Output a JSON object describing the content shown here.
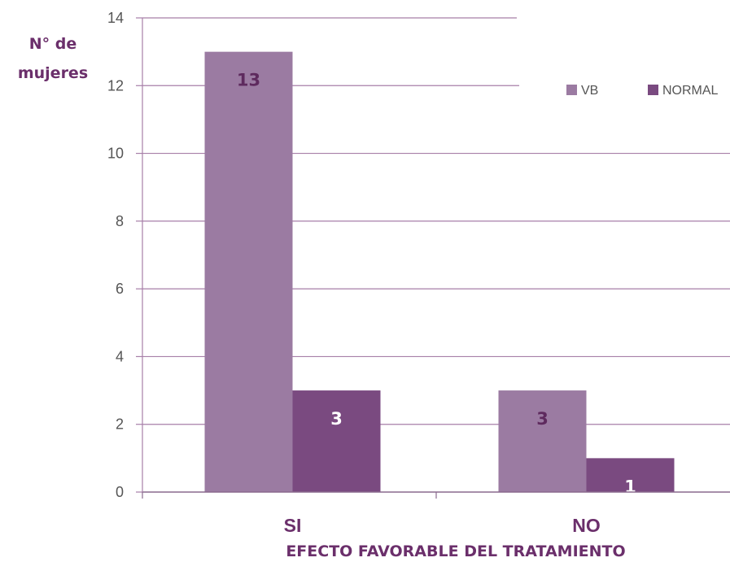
{
  "chart_data": {
    "type": "bar",
    "ylabel_lines": [
      "N°  de",
      "mujeres"
    ],
    "xlabel": "EFECTO FAVORABLE DEL TRATAMIENTO",
    "categories": [
      "SI",
      "NO"
    ],
    "series": [
      {
        "name": "VB",
        "values": [
          13,
          3
        ],
        "color": "#9b7ba2",
        "label_color": "#5e2a5e"
      },
      {
        "name": "NORMAL",
        "values": [
          3,
          1
        ],
        "color": "#7a4a80",
        "label_color": "#ffffff"
      }
    ],
    "ylim": [
      0,
      14
    ],
    "yticks": [
      0,
      2,
      4,
      6,
      8,
      10,
      12,
      14
    ],
    "grid": true,
    "legend_position": "top-right",
    "gridline_color": "#a77fa8"
  }
}
